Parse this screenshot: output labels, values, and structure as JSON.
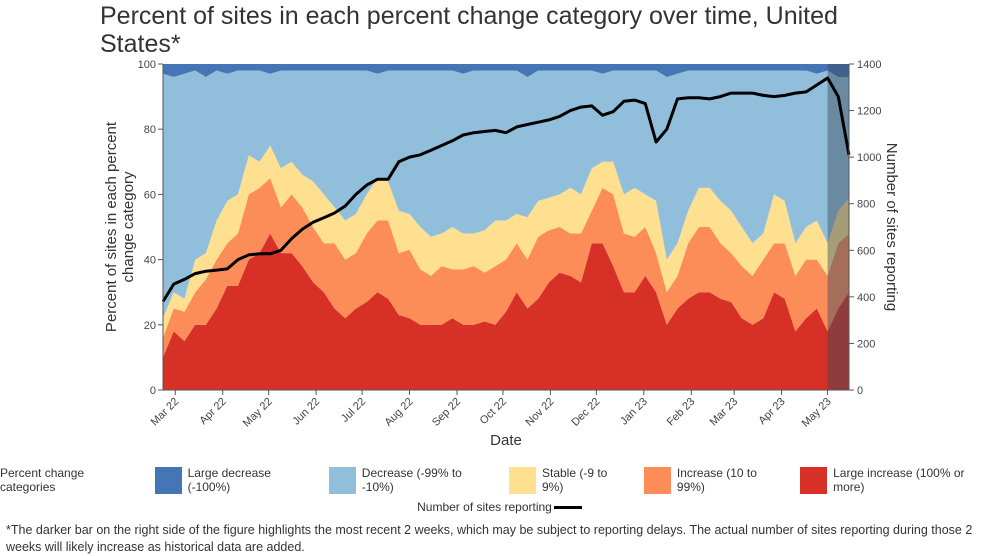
{
  "chart_data": {
    "type": "area",
    "stacked": true,
    "title": "Percent of sites in each percent change category over time, United States*",
    "xlabel": "Date",
    "ylabel": "Percent of sites in each percent change category",
    "y2label": "Number of sites reporting",
    "ylim": [
      0,
      100
    ],
    "y2lim": [
      0,
      1400
    ],
    "yticks": [
      "0",
      "20",
      "40",
      "60",
      "80",
      "100"
    ],
    "y2ticks": [
      "0",
      "200",
      "400",
      "600",
      "800",
      "1000",
      "1200",
      "1400"
    ],
    "xlim": [
      "2022-02-21",
      "2023-05-15"
    ],
    "xticks": [
      {
        "date": "2022-03-01",
        "label": "Mar 22"
      },
      {
        "date": "2022-04-01",
        "label": "Apr 22"
      },
      {
        "date": "2022-05-01",
        "label": "May 22"
      },
      {
        "date": "2022-06-01",
        "label": "Jun 22"
      },
      {
        "date": "2022-07-01",
        "label": "Jul 22"
      },
      {
        "date": "2022-08-01",
        "label": "Aug 22"
      },
      {
        "date": "2022-09-01",
        "label": "Sep 22"
      },
      {
        "date": "2022-10-01",
        "label": "Oct 22"
      },
      {
        "date": "2022-11-01",
        "label": "Nov 22"
      },
      {
        "date": "2022-12-01",
        "label": "Dec 22"
      },
      {
        "date": "2023-01-01",
        "label": "Jan 23"
      },
      {
        "date": "2023-02-01",
        "label": "Feb 23"
      },
      {
        "date": "2023-03-01",
        "label": "Mar 23"
      },
      {
        "date": "2023-04-01",
        "label": "Apr 23"
      },
      {
        "date": "2023-05-01",
        "label": "May 23"
      }
    ],
    "grid": false,
    "legend_position": "bottom",
    "recent_period_highlight": {
      "start": "2023-05-01",
      "end": "2023-05-15"
    },
    "x": [
      "2022-02-21",
      "2022-02-28",
      "2022-03-07",
      "2022-03-14",
      "2022-03-21",
      "2022-03-28",
      "2022-04-04",
      "2022-04-11",
      "2022-04-18",
      "2022-04-25",
      "2022-05-02",
      "2022-05-09",
      "2022-05-16",
      "2022-05-23",
      "2022-05-30",
      "2022-06-06",
      "2022-06-13",
      "2022-06-20",
      "2022-06-27",
      "2022-07-04",
      "2022-07-11",
      "2022-07-18",
      "2022-07-25",
      "2022-08-01",
      "2022-08-08",
      "2022-08-15",
      "2022-08-22",
      "2022-08-29",
      "2022-09-05",
      "2022-09-12",
      "2022-09-19",
      "2022-09-26",
      "2022-10-03",
      "2022-10-10",
      "2022-10-17",
      "2022-10-24",
      "2022-10-31",
      "2022-11-07",
      "2022-11-14",
      "2022-11-21",
      "2022-11-28",
      "2022-12-05",
      "2022-12-12",
      "2022-12-19",
      "2022-12-26",
      "2023-01-02",
      "2023-01-09",
      "2023-01-16",
      "2023-01-23",
      "2023-01-30",
      "2023-02-06",
      "2023-02-13",
      "2023-02-20",
      "2023-02-27",
      "2023-03-06",
      "2023-03-13",
      "2023-03-20",
      "2023-03-27",
      "2023-04-03",
      "2023-04-10",
      "2023-04-17",
      "2023-04-24",
      "2023-05-01",
      "2023-05-08",
      "2023-05-15"
    ],
    "series": [
      {
        "name": "Large increase (100% or more)",
        "color": "#d73027",
        "values": [
          10,
          18,
          15,
          20,
          20,
          25,
          32,
          32,
          40,
          42,
          48,
          42,
          42,
          38,
          33,
          30,
          25,
          22,
          25,
          27,
          30,
          28,
          23,
          22,
          20,
          20,
          20,
          22,
          20,
          20,
          21,
          20,
          24,
          30,
          25,
          28,
          33,
          36,
          35,
          33,
          45,
          45,
          38,
          30,
          30,
          35,
          30,
          20,
          25,
          28,
          30,
          30,
          28,
          27,
          22,
          20,
          22,
          30,
          28,
          18,
          22,
          25,
          18,
          25,
          30
        ]
      },
      {
        "name": "Increase (10 to 99%)",
        "color": "#fc8d59",
        "values": [
          6,
          7,
          9,
          10,
          14,
          15,
          13,
          16,
          20,
          20,
          17,
          14,
          18,
          18,
          17,
          15,
          20,
          18,
          17,
          21,
          22,
          24,
          19,
          21,
          17,
          15,
          18,
          15,
          17,
          18,
          15,
          18,
          16,
          15,
          15,
          19,
          16,
          14,
          13,
          15,
          10,
          17,
          22,
          18,
          17,
          15,
          12,
          10,
          10,
          17,
          20,
          20,
          17,
          15,
          16,
          15,
          18,
          15,
          17,
          17,
          18,
          15,
          17,
          20,
          18
        ]
      },
      {
        "name": "Stable (-9 to 9%)",
        "color": "#fee090",
        "values": [
          6,
          5,
          4,
          10,
          8,
          12,
          13,
          12,
          12,
          8,
          10,
          12,
          10,
          10,
          14,
          15,
          11,
          12,
          12,
          12,
          13,
          12,
          13,
          11,
          13,
          12,
          10,
          13,
          11,
          10,
          13,
          14,
          12,
          9,
          13,
          11,
          10,
          10,
          14,
          12,
          13,
          8,
          10,
          12,
          15,
          10,
          16,
          10,
          10,
          10,
          12,
          12,
          13,
          13,
          12,
          10,
          8,
          15,
          13,
          10,
          10,
          12,
          10,
          10,
          11
        ]
      },
      {
        "name": "Decrease (-99% to -10%)",
        "color": "#91bfdb",
        "values": [
          75,
          66,
          69,
          58,
          54,
          46,
          39,
          38,
          26,
          28,
          22,
          30,
          28,
          32,
          34,
          38,
          42,
          46,
          44,
          38,
          32,
          34,
          43,
          44,
          48,
          51,
          50,
          48,
          49,
          50,
          49,
          46,
          46,
          44,
          43,
          40,
          39,
          38,
          36,
          38,
          30,
          27,
          28,
          38,
          36,
          38,
          40,
          56,
          52,
          43,
          36,
          36,
          40,
          43,
          48,
          53,
          50,
          38,
          40,
          53,
          48,
          45,
          53,
          41,
          37
        ]
      },
      {
        "name": "Large decrease (-100%)",
        "color": "#4575b4",
        "values": [
          3,
          4,
          3,
          2,
          4,
          2,
          3,
          2,
          2,
          2,
          3,
          2,
          2,
          2,
          2,
          2,
          2,
          2,
          2,
          2,
          3,
          2,
          2,
          2,
          2,
          2,
          2,
          2,
          3,
          2,
          2,
          2,
          2,
          2,
          4,
          2,
          2,
          2,
          2,
          2,
          2,
          3,
          2,
          2,
          2,
          2,
          2,
          4,
          3,
          2,
          2,
          2,
          2,
          2,
          2,
          2,
          2,
          2,
          2,
          2,
          2,
          3,
          2,
          4,
          4
        ]
      }
    ],
    "line_series": {
      "name": "Number of sites reporting",
      "color": "#000000",
      "axis": "right",
      "values": [
        380,
        455,
        475,
        500,
        510,
        515,
        520,
        560,
        580,
        585,
        585,
        600,
        650,
        690,
        720,
        740,
        760,
        790,
        840,
        880,
        905,
        905,
        980,
        1000,
        1010,
        1030,
        1050,
        1070,
        1095,
        1105,
        1110,
        1115,
        1105,
        1130,
        1140,
        1150,
        1160,
        1175,
        1200,
        1215,
        1220,
        1180,
        1195,
        1240,
        1245,
        1230,
        1065,
        1120,
        1250,
        1255,
        1255,
        1250,
        1260,
        1275,
        1275,
        1275,
        1265,
        1260,
        1265,
        1275,
        1280,
        1310,
        1340,
        1260,
        1010
      ]
    }
  },
  "legend": {
    "title": "Percent change categories",
    "items": [
      {
        "label": "Large decrease (-100%)",
        "color": "#4575b4"
      },
      {
        "label": "Decrease (-99% to -10%)",
        "color": "#91bfdb"
      },
      {
        "label": "Stable (-9 to 9%)",
        "color": "#fee090"
      },
      {
        "label": "Increase (10 to 99%)",
        "color": "#fc8d59"
      },
      {
        "label": "Large increase (100% or more)",
        "color": "#d73027"
      }
    ],
    "line_label": "Number of sites reporting"
  },
  "footnote": "*The darker bar on the right side of the figure highlights the most recent 2 weeks, which may be subject to reporting delays. The actual number of sites reporting during those 2 weeks will likely increase as historical data are added."
}
